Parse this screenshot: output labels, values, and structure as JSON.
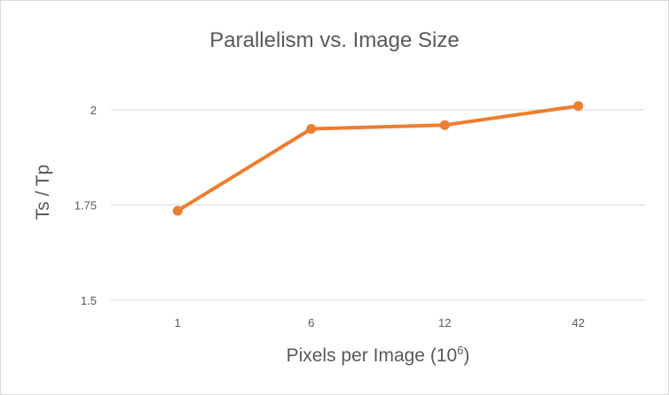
{
  "chart_data": {
    "type": "line",
    "title": "Parallelism vs. Image Size",
    "xlabel": "Pixels per Image (10",
    "xlabel_superscript": "6",
    "xlabel_suffix": ")",
    "ylabel": "Ts / Tp",
    "categories": [
      "1",
      "6",
      "12",
      "42"
    ],
    "series": [
      {
        "values": [
          1.735,
          1.95,
          1.96,
          2.01
        ]
      }
    ],
    "ylim": [
      1.5,
      2.1
    ],
    "yticks": [
      1.5,
      1.75,
      2
    ],
    "ytick_labels": [
      "1.5",
      "1.75",
      "2"
    ],
    "grid": true,
    "legend": "none",
    "colors": {
      "series": "#ed7d31",
      "grid": "#d9d9d9",
      "text": "#595959"
    }
  }
}
